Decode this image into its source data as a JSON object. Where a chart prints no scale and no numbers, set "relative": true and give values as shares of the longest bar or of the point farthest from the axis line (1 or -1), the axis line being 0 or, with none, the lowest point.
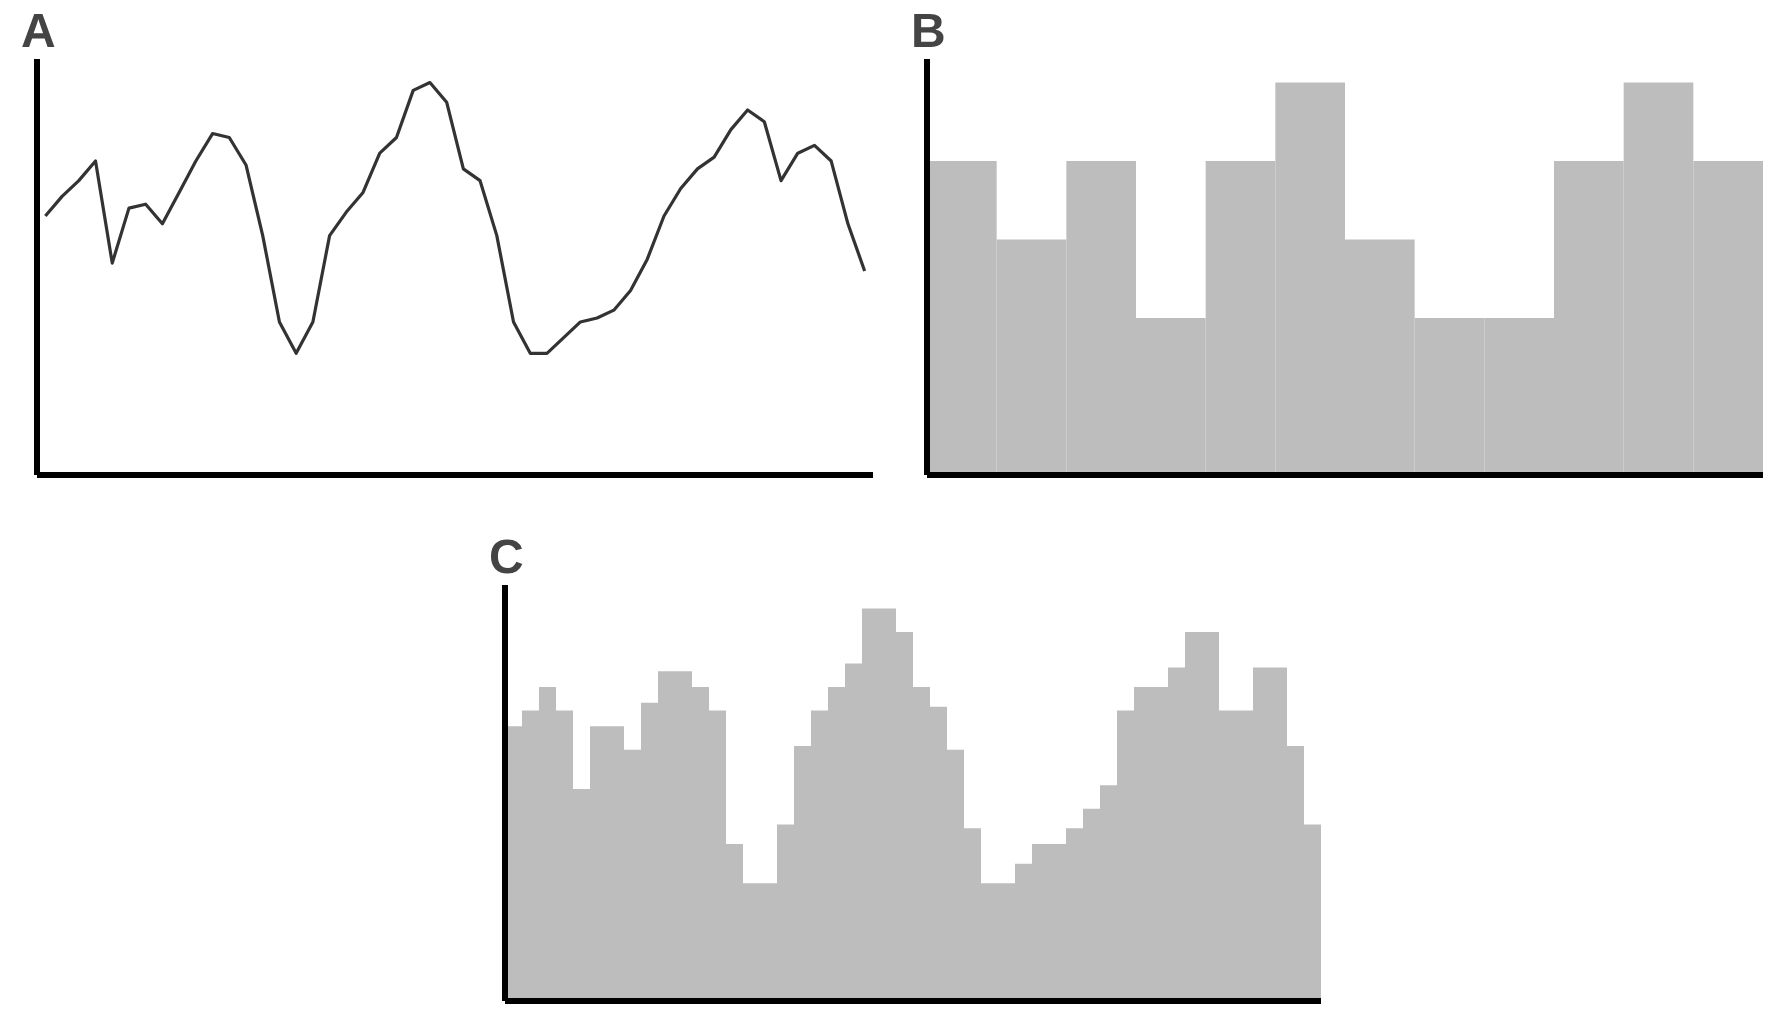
{
  "chart_data": [
    {
      "type": "line",
      "title": "A",
      "relative": true,
      "line_style": "solid",
      "categories": [
        null,
        null,
        null,
        null,
        null,
        null,
        null,
        null,
        null,
        null,
        null,
        null,
        null,
        null,
        null,
        null,
        null,
        null,
        null,
        null,
        null,
        null,
        null,
        null,
        null,
        null,
        null,
        null,
        null,
        null,
        null,
        null,
        null,
        null,
        null,
        null,
        null,
        null,
        null,
        null,
        null,
        null,
        null,
        null,
        null,
        null,
        null,
        null,
        null,
        null
      ],
      "series": [
        {
          "color": "#333333",
          "values": [
            0.66,
            0.71,
            0.75,
            0.8,
            0.54,
            0.68,
            0.69,
            0.64,
            0.72,
            0.8,
            0.87,
            0.86,
            0.79,
            0.61,
            0.39,
            0.31,
            0.39,
            0.61,
            0.67,
            0.72,
            0.82,
            0.86,
            0.98,
            1,
            0.95,
            0.78,
            0.75,
            0.61,
            0.39,
            0.31,
            0.31,
            0.35,
            0.39,
            0.4,
            0.42,
            0.47,
            0.55,
            0.66,
            0.73,
            0.78,
            0.81,
            0.88,
            0.93,
            0.9,
            0.75,
            0.82,
            0.84,
            0.8,
            0.64,
            0.52
          ]
        }
      ]
    },
    {
      "type": "bar",
      "title": "B",
      "relative": true,
      "categories": [
        null,
        null,
        null,
        null,
        null,
        null,
        null,
        null,
        null,
        null,
        null,
        null
      ],
      "series": [
        {
          "color": "#bdbdbd",
          "values": [
            0.8,
            0.6,
            0.8,
            0.4,
            0.8,
            1,
            0.6,
            0.4,
            0.4,
            0.8,
            1,
            0.8
          ]
        }
      ]
    },
    {
      "type": "bar",
      "title": "C",
      "relative": true,
      "categories": [
        null,
        null,
        null,
        null,
        null,
        null,
        null,
        null,
        null,
        null,
        null,
        null,
        null,
        null,
        null,
        null,
        null,
        null,
        null,
        null,
        null,
        null,
        null,
        null,
        null,
        null,
        null,
        null,
        null,
        null,
        null,
        null,
        null,
        null,
        null,
        null,
        null,
        null,
        null,
        null,
        null,
        null,
        null,
        null,
        null,
        null,
        null,
        null
      ],
      "series": [
        {
          "color": "#bdbdbd",
          "values": [
            0.7,
            0.74,
            0.8,
            0.74,
            0.54,
            0.7,
            0.7,
            0.64,
            0.76,
            0.84,
            0.84,
            0.8,
            0.74,
            0.4,
            0.3,
            0.3,
            0.45,
            0.65,
            0.74,
            0.8,
            0.86,
            1,
            1,
            0.94,
            0.8,
            0.75,
            0.64,
            0.44,
            0.3,
            0.3,
            0.35,
            0.4,
            0.4,
            0.44,
            0.49,
            0.55,
            0.74,
            0.8,
            0.8,
            0.85,
            0.94,
            0.94,
            0.74,
            0.74,
            0.85,
            0.85,
            0.65,
            0.45
          ]
        }
      ]
    }
  ]
}
